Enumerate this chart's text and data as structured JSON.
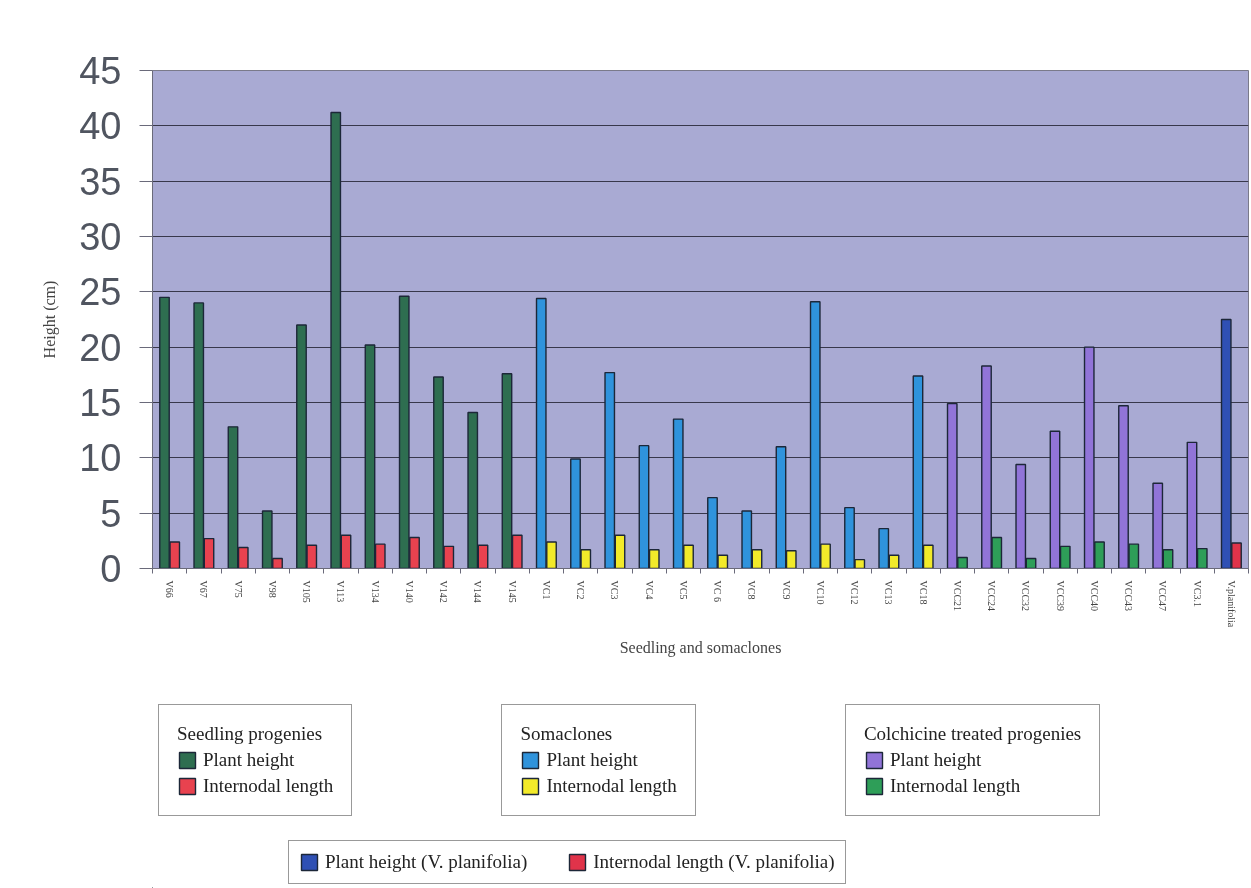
{
  "chart_data": {
    "type": "bar",
    "xlabel": "Seedling and somaclones",
    "ylabel": "Height (cm)",
    "categories": [
      "V66",
      "V67",
      "V75",
      "V98",
      "V105",
      "V113",
      "V134",
      "V140",
      "V142",
      "V144",
      "V145",
      "VC1",
      "VC2",
      "VC3",
      "VC4",
      "VC5",
      "VC 6",
      "VC8",
      "VC9",
      "VC10",
      "VC12",
      "VC13",
      "VC18",
      "VCC21",
      "VCC24",
      "VCC32",
      "VCC39",
      "VCC40",
      "VCC43",
      "VCC47",
      "VC3.1",
      "V.planifolia"
    ],
    "series": [
      {
        "name": "Plant height",
        "color": "#2e6e50",
        "values": [
          24.5,
          24.0,
          12.8,
          5.2,
          22.0,
          41.2,
          20.2,
          24.6,
          17.3,
          14.1,
          17.6,
          null,
          null,
          null,
          null,
          null,
          null,
          null,
          null,
          null,
          null,
          null,
          null,
          null,
          null,
          null,
          null,
          null,
          null,
          null,
          null,
          null
        ]
      },
      {
        "name": "Internodal length",
        "color": "#e8424f",
        "values": [
          2.4,
          2.7,
          1.9,
          0.9,
          2.1,
          3.0,
          2.2,
          2.8,
          2.0,
          2.1,
          3.0,
          null,
          null,
          null,
          null,
          null,
          null,
          null,
          null,
          null,
          null,
          null,
          null,
          null,
          null,
          null,
          null,
          null,
          null,
          null,
          null,
          null
        ]
      },
      {
        "name": "Plant height",
        "color": "#2f93dc",
        "values": [
          null,
          null,
          null,
          null,
          null,
          null,
          null,
          null,
          null,
          null,
          null,
          24.4,
          9.9,
          17.7,
          11.1,
          13.5,
          6.4,
          5.2,
          11.0,
          24.1,
          5.5,
          3.6,
          17.4,
          null,
          null,
          null,
          null,
          null,
          null,
          null,
          null,
          null
        ]
      },
      {
        "name": "Internodal length",
        "color": "#f2ea2a",
        "values": [
          null,
          null,
          null,
          null,
          null,
          null,
          null,
          null,
          null,
          null,
          null,
          2.4,
          1.7,
          3.0,
          1.7,
          2.1,
          1.2,
          1.7,
          1.6,
          2.2,
          0.8,
          1.2,
          2.1,
          null,
          null,
          null,
          null,
          null,
          null,
          null,
          null,
          null
        ]
      },
      {
        "name": "Plant height",
        "color": "#9174d8",
        "values": [
          null,
          null,
          null,
          null,
          null,
          null,
          null,
          null,
          null,
          null,
          null,
          null,
          null,
          null,
          null,
          null,
          null,
          null,
          null,
          null,
          null,
          null,
          null,
          14.9,
          18.3,
          9.4,
          12.4,
          20.0,
          14.7,
          7.7,
          11.4,
          null
        ]
      },
      {
        "name": "Internodal length",
        "color": "#2e9e58",
        "values": [
          null,
          null,
          null,
          null,
          null,
          null,
          null,
          null,
          null,
          null,
          null,
          null,
          null,
          null,
          null,
          null,
          null,
          null,
          null,
          null,
          null,
          null,
          null,
          1.0,
          2.8,
          0.9,
          2.0,
          2.4,
          2.2,
          1.7,
          1.8,
          null
        ]
      },
      {
        "name": "Plant height (V. planifolia)",
        "color": "#2f50b4",
        "values": [
          null,
          null,
          null,
          null,
          null,
          null,
          null,
          null,
          null,
          null,
          null,
          null,
          null,
          null,
          null,
          null,
          null,
          null,
          null,
          null,
          null,
          null,
          null,
          null,
          null,
          null,
          null,
          null,
          null,
          null,
          null,
          22.5
        ]
      },
      {
        "name": "Internodal length (V. planifolia)",
        "color": "#e0334a",
        "values": [
          null,
          null,
          null,
          null,
          null,
          null,
          null,
          null,
          null,
          null,
          null,
          null,
          null,
          null,
          null,
          null,
          null,
          null,
          null,
          null,
          null,
          null,
          null,
          null,
          null,
          null,
          null,
          null,
          null,
          null,
          null,
          2.3
        ]
      }
    ],
    "ylim": [
      0,
      45
    ],
    "yticks": [
      0,
      5,
      10,
      15,
      20,
      25,
      30,
      35,
      40,
      45
    ],
    "grid": "y",
    "legend": "bottom",
    "annotations": [
      "Seedling progenies",
      "Somaclones",
      "Colchicine treated progenies"
    ]
  }
}
